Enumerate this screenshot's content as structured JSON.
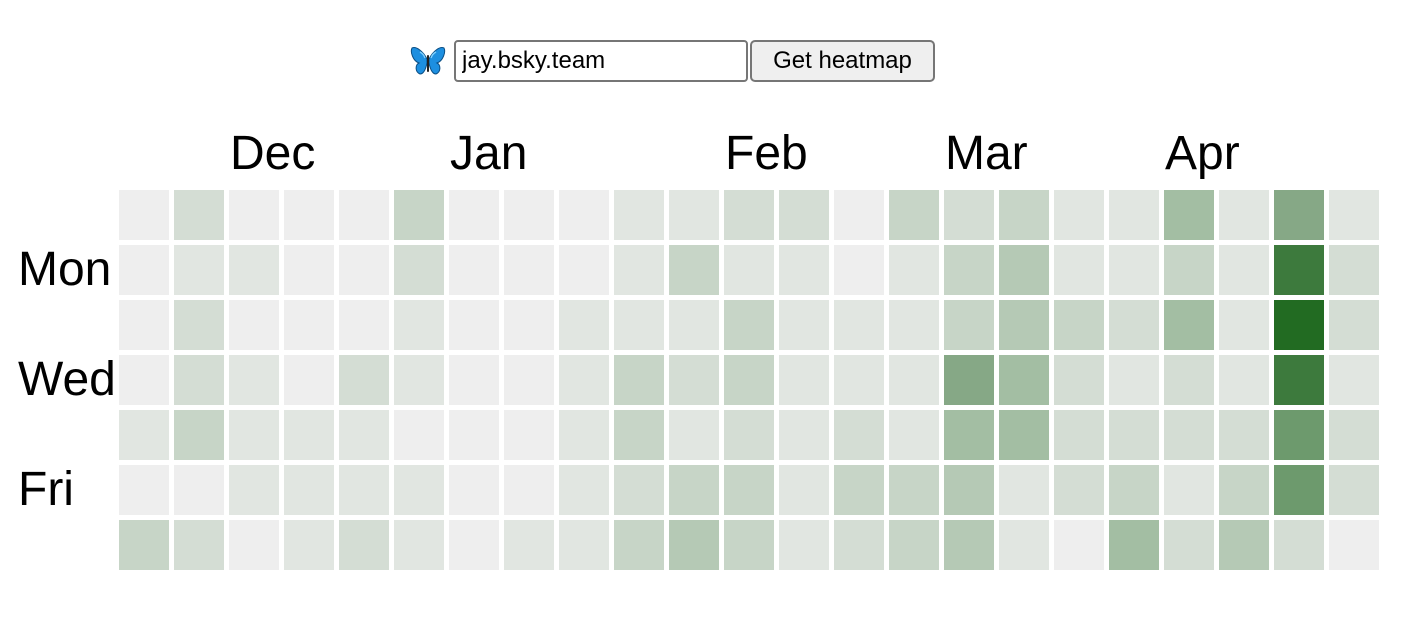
{
  "form": {
    "logo_icon": "butterfly-icon",
    "handle_value": "jay.bsky.team",
    "submit_label": "Get heatmap"
  },
  "heatmap": {
    "months": [
      {
        "label": "Dec",
        "week": 2
      },
      {
        "label": "Jan",
        "week": 6
      },
      {
        "label": "Feb",
        "week": 11
      },
      {
        "label": "Mar",
        "week": 15
      },
      {
        "label": "Apr",
        "week": 19
      }
    ],
    "day_labels": [
      {
        "label": "Mon",
        "row": 1
      },
      {
        "label": "Wed",
        "row": 3
      },
      {
        "label": "Fri",
        "row": 5
      }
    ],
    "palette": [
      "#eeeeee",
      "#e1e6e1",
      "#d4ddd4",
      "#c7d5c7",
      "#b5c9b5",
      "#a3bea3",
      "#86a886",
      "#6d9a6d",
      "#3d7a3d",
      "#226b22"
    ],
    "levels": [
      [
        0,
        0,
        0,
        0,
        1,
        0,
        3
      ],
      [
        2,
        1,
        2,
        2,
        3,
        0,
        2
      ],
      [
        0,
        1,
        0,
        1,
        1,
        1,
        0
      ],
      [
        0,
        0,
        0,
        0,
        1,
        1,
        1
      ],
      [
        0,
        0,
        0,
        2,
        1,
        1,
        2
      ],
      [
        3,
        2,
        1,
        1,
        0,
        1,
        1
      ],
      [
        0,
        0,
        0,
        0,
        0,
        0,
        0
      ],
      [
        0,
        0,
        0,
        0,
        0,
        0,
        1
      ],
      [
        0,
        0,
        1,
        1,
        1,
        1,
        1
      ],
      [
        1,
        1,
        1,
        3,
        3,
        2,
        3
      ],
      [
        1,
        3,
        1,
        2,
        1,
        3,
        4
      ],
      [
        2,
        1,
        3,
        3,
        2,
        3,
        3
      ],
      [
        2,
        1,
        1,
        1,
        1,
        1,
        1
      ],
      [
        0,
        0,
        1,
        1,
        2,
        3,
        2
      ],
      [
        3,
        1,
        1,
        1,
        1,
        3,
        3
      ],
      [
        2,
        3,
        3,
        6,
        5,
        4,
        4
      ],
      [
        3,
        4,
        4,
        5,
        5,
        1,
        1
      ],
      [
        1,
        1,
        3,
        2,
        2,
        2,
        0
      ],
      [
        1,
        1,
        2,
        1,
        2,
        3,
        5
      ],
      [
        5,
        3,
        5,
        2,
        2,
        1,
        2
      ],
      [
        1,
        1,
        1,
        1,
        2,
        3,
        4
      ],
      [
        6,
        8,
        9,
        8,
        7,
        7,
        2
      ],
      [
        1,
        2,
        2,
        1,
        2,
        2,
        0
      ]
    ]
  }
}
